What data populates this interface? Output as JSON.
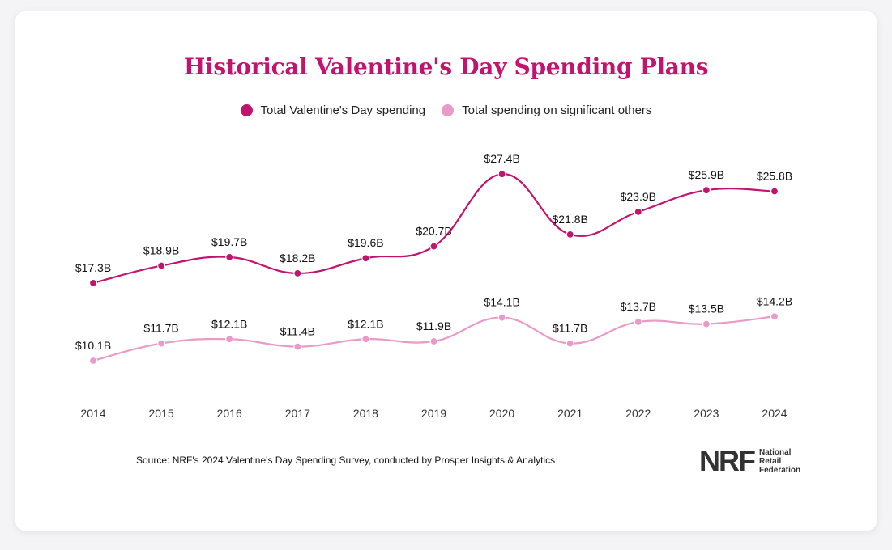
{
  "page": {
    "source": "Source: NRF's 2024 Valentine's Day Spending Survey, conducted by Prosper Insights & Analytics",
    "logo": {
      "mark": "NRF",
      "lines": [
        "National",
        "Retail",
        "Federation"
      ]
    }
  },
  "colors": {
    "primary": "#c2146f",
    "secondary": "#ea9ac8"
  },
  "chart_data": {
    "type": "line",
    "title": "Historical Valentine's Day Spending Plans",
    "legend_position": "top-center",
    "grid": false,
    "x": [
      "2014",
      "2015",
      "2016",
      "2017",
      "2018",
      "2019",
      "2020",
      "2021",
      "2022",
      "2023",
      "2024"
    ],
    "ylim": [
      0,
      30
    ],
    "series": [
      {
        "name": "Total Valentine's Day spending",
        "color": "#c2146f",
        "values": [
          17.3,
          18.9,
          19.7,
          18.2,
          19.6,
          20.7,
          27.4,
          21.8,
          23.9,
          25.9,
          25.8
        ],
        "labels": [
          "$17.3B",
          "$18.9B",
          "$19.7B",
          "$18.2B",
          "$19.6B",
          "$20.7B",
          "$27.4B",
          "$21.8B",
          "$23.9B",
          "$25.9B",
          "$25.8B"
        ]
      },
      {
        "name": "Total spending on significant others",
        "color": "#ea9ac8",
        "values": [
          10.1,
          11.7,
          12.1,
          11.4,
          12.1,
          11.9,
          14.1,
          11.7,
          13.7,
          13.5,
          14.2
        ],
        "labels": [
          "$10.1B",
          "$11.7B",
          "$12.1B",
          "$11.4B",
          "$12.1B",
          "$11.9B",
          "$14.1B",
          "$11.7B",
          "$13.7B",
          "$13.5B",
          "$14.2B"
        ]
      }
    ]
  }
}
